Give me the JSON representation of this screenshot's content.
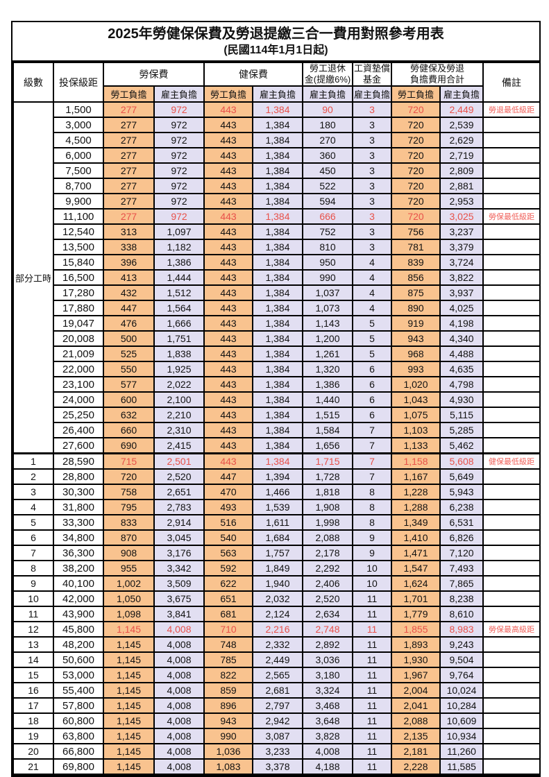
{
  "title": "2025年勞健保保費及勞退提繳三合一費用對照參考用表",
  "subtitle": "(民國114年1月1日起)",
  "columns": {
    "level": "級數",
    "salary": "投保級距",
    "labor": "勞保費",
    "health": "健保費",
    "pension": "勞工退休\n金(提繳6%)",
    "wage_fund": "工資墊償\n基金",
    "total": "勞健保及勞退\n負擔費用合計",
    "remark": "備註",
    "employee": "勞工負擔",
    "employer": "雇主負擔"
  },
  "part_time_label": "部分工時",
  "colors": {
    "employee_bg": "#F9C38F",
    "employer_bg": "#E2DFF2",
    "highlight_value_text": "#E8514A",
    "remark_text": "#F0625B",
    "border": "#000000"
  },
  "rows": [
    {
      "level": "",
      "salary": "1,500",
      "v": [
        "277",
        "972",
        "443",
        "1,384",
        "90",
        "3",
        "720",
        "2,449"
      ],
      "remark": "勞退最低級距",
      "hl": true
    },
    {
      "level": "",
      "salary": "3,000",
      "v": [
        "277",
        "972",
        "443",
        "1,384",
        "180",
        "3",
        "720",
        "2,539"
      ],
      "remark": "",
      "hl": false
    },
    {
      "level": "",
      "salary": "4,500",
      "v": [
        "277",
        "972",
        "443",
        "1,384",
        "270",
        "3",
        "720",
        "2,629"
      ],
      "remark": "",
      "hl": false
    },
    {
      "level": "",
      "salary": "6,000",
      "v": [
        "277",
        "972",
        "443",
        "1,384",
        "360",
        "3",
        "720",
        "2,719"
      ],
      "remark": "",
      "hl": false
    },
    {
      "level": "",
      "salary": "7,500",
      "v": [
        "277",
        "972",
        "443",
        "1,384",
        "450",
        "3",
        "720",
        "2,809"
      ],
      "remark": "",
      "hl": false
    },
    {
      "level": "",
      "salary": "8,700",
      "v": [
        "277",
        "972",
        "443",
        "1,384",
        "522",
        "3",
        "720",
        "2,881"
      ],
      "remark": "",
      "hl": false
    },
    {
      "level": "",
      "salary": "9,900",
      "v": [
        "277",
        "972",
        "443",
        "1,384",
        "594",
        "3",
        "720",
        "2,953"
      ],
      "remark": "",
      "hl": false
    },
    {
      "level": "",
      "salary": "11,100",
      "v": [
        "277",
        "972",
        "443",
        "1,384",
        "666",
        "3",
        "720",
        "3,025"
      ],
      "remark": "勞保最低級距",
      "hl": true
    },
    {
      "level": "",
      "salary": "12,540",
      "v": [
        "313",
        "1,097",
        "443",
        "1,384",
        "752",
        "3",
        "756",
        "3,237"
      ],
      "remark": "",
      "hl": false
    },
    {
      "level": "",
      "salary": "13,500",
      "v": [
        "338",
        "1,182",
        "443",
        "1,384",
        "810",
        "3",
        "781",
        "3,379"
      ],
      "remark": "",
      "hl": false
    },
    {
      "level": "",
      "salary": "15,840",
      "v": [
        "396",
        "1,386",
        "443",
        "1,384",
        "950",
        "4",
        "839",
        "3,724"
      ],
      "remark": "",
      "hl": false
    },
    {
      "level": "",
      "salary": "16,500",
      "v": [
        "413",
        "1,444",
        "443",
        "1,384",
        "990",
        "4",
        "856",
        "3,822"
      ],
      "remark": "",
      "hl": false
    },
    {
      "level": "",
      "salary": "17,280",
      "v": [
        "432",
        "1,512",
        "443",
        "1,384",
        "1,037",
        "4",
        "875",
        "3,937"
      ],
      "remark": "",
      "hl": false
    },
    {
      "level": "",
      "salary": "17,880",
      "v": [
        "447",
        "1,564",
        "443",
        "1,384",
        "1,073",
        "4",
        "890",
        "4,025"
      ],
      "remark": "",
      "hl": false
    },
    {
      "level": "",
      "salary": "19,047",
      "v": [
        "476",
        "1,666",
        "443",
        "1,384",
        "1,143",
        "5",
        "919",
        "4,198"
      ],
      "remark": "",
      "hl": false
    },
    {
      "level": "",
      "salary": "20,008",
      "v": [
        "500",
        "1,751",
        "443",
        "1,384",
        "1,200",
        "5",
        "943",
        "4,340"
      ],
      "remark": "",
      "hl": false
    },
    {
      "level": "",
      "salary": "21,009",
      "v": [
        "525",
        "1,838",
        "443",
        "1,384",
        "1,261",
        "5",
        "968",
        "4,488"
      ],
      "remark": "",
      "hl": false
    },
    {
      "level": "",
      "salary": "22,000",
      "v": [
        "550",
        "1,925",
        "443",
        "1,384",
        "1,320",
        "6",
        "993",
        "4,635"
      ],
      "remark": "",
      "hl": false
    },
    {
      "level": "",
      "salary": "23,100",
      "v": [
        "577",
        "2,022",
        "443",
        "1,384",
        "1,386",
        "6",
        "1,020",
        "4,798"
      ],
      "remark": "",
      "hl": false
    },
    {
      "level": "",
      "salary": "24,000",
      "v": [
        "600",
        "2,100",
        "443",
        "1,384",
        "1,440",
        "6",
        "1,043",
        "4,930"
      ],
      "remark": "",
      "hl": false
    },
    {
      "level": "",
      "salary": "25,250",
      "v": [
        "632",
        "2,210",
        "443",
        "1,384",
        "1,515",
        "6",
        "1,075",
        "5,115"
      ],
      "remark": "",
      "hl": false
    },
    {
      "level": "",
      "salary": "26,400",
      "v": [
        "660",
        "2,310",
        "443",
        "1,384",
        "1,584",
        "7",
        "1,103",
        "5,285"
      ],
      "remark": "",
      "hl": false
    },
    {
      "level": "",
      "salary": "27,600",
      "v": [
        "690",
        "2,415",
        "443",
        "1,384",
        "1,656",
        "7",
        "1,133",
        "5,462"
      ],
      "remark": "",
      "hl": false
    },
    {
      "level": "1",
      "salary": "28,590",
      "v": [
        "715",
        "2,501",
        "443",
        "1,384",
        "1,715",
        "7",
        "1,158",
        "5,608"
      ],
      "remark": "健保最低級距",
      "hl": true
    },
    {
      "level": "2",
      "salary": "28,800",
      "v": [
        "720",
        "2,520",
        "447",
        "1,394",
        "1,728",
        "7",
        "1,167",
        "5,649"
      ],
      "remark": "",
      "hl": false
    },
    {
      "level": "3",
      "salary": "30,300",
      "v": [
        "758",
        "2,651",
        "470",
        "1,466",
        "1,818",
        "8",
        "1,228",
        "5,943"
      ],
      "remark": "",
      "hl": false
    },
    {
      "level": "4",
      "salary": "31,800",
      "v": [
        "795",
        "2,783",
        "493",
        "1,539",
        "1,908",
        "8",
        "1,288",
        "6,238"
      ],
      "remark": "",
      "hl": false
    },
    {
      "level": "5",
      "salary": "33,300",
      "v": [
        "833",
        "2,914",
        "516",
        "1,611",
        "1,998",
        "8",
        "1,349",
        "6,531"
      ],
      "remark": "",
      "hl": false
    },
    {
      "level": "6",
      "salary": "34,800",
      "v": [
        "870",
        "3,045",
        "540",
        "1,684",
        "2,088",
        "9",
        "1,410",
        "6,826"
      ],
      "remark": "",
      "hl": false
    },
    {
      "level": "7",
      "salary": "36,300",
      "v": [
        "908",
        "3,176",
        "563",
        "1,757",
        "2,178",
        "9",
        "1,471",
        "7,120"
      ],
      "remark": "",
      "hl": false
    },
    {
      "level": "8",
      "salary": "38,200",
      "v": [
        "955",
        "3,342",
        "592",
        "1,849",
        "2,292",
        "10",
        "1,547",
        "7,493"
      ],
      "remark": "",
      "hl": false
    },
    {
      "level": "9",
      "salary": "40,100",
      "v": [
        "1,002",
        "3,509",
        "622",
        "1,940",
        "2,406",
        "10",
        "1,624",
        "7,865"
      ],
      "remark": "",
      "hl": false
    },
    {
      "level": "10",
      "salary": "42,000",
      "v": [
        "1,050",
        "3,675",
        "651",
        "2,032",
        "2,520",
        "11",
        "1,701",
        "8,238"
      ],
      "remark": "",
      "hl": false
    },
    {
      "level": "11",
      "salary": "43,900",
      "v": [
        "1,098",
        "3,841",
        "681",
        "2,124",
        "2,634",
        "11",
        "1,779",
        "8,610"
      ],
      "remark": "",
      "hl": false
    },
    {
      "level": "12",
      "salary": "45,800",
      "v": [
        "1,145",
        "4,008",
        "710",
        "2,216",
        "2,748",
        "11",
        "1,855",
        "8,983"
      ],
      "remark": "勞保最高級距",
      "hl": true
    },
    {
      "level": "13",
      "salary": "48,200",
      "v": [
        "1,145",
        "4,008",
        "748",
        "2,332",
        "2,892",
        "11",
        "1,893",
        "9,243"
      ],
      "remark": "",
      "hl": false
    },
    {
      "level": "14",
      "salary": "50,600",
      "v": [
        "1,145",
        "4,008",
        "785",
        "2,449",
        "3,036",
        "11",
        "1,930",
        "9,504"
      ],
      "remark": "",
      "hl": false
    },
    {
      "level": "15",
      "salary": "53,000",
      "v": [
        "1,145",
        "4,008",
        "822",
        "2,565",
        "3,180",
        "11",
        "1,967",
        "9,764"
      ],
      "remark": "",
      "hl": false
    },
    {
      "level": "16",
      "salary": "55,400",
      "v": [
        "1,145",
        "4,008",
        "859",
        "2,681",
        "3,324",
        "11",
        "2,004",
        "10,024"
      ],
      "remark": "",
      "hl": false
    },
    {
      "level": "17",
      "salary": "57,800",
      "v": [
        "1,145",
        "4,008",
        "896",
        "2,797",
        "3,468",
        "11",
        "2,041",
        "10,284"
      ],
      "remark": "",
      "hl": false
    },
    {
      "level": "18",
      "salary": "60,800",
      "v": [
        "1,145",
        "4,008",
        "943",
        "2,942",
        "3,648",
        "11",
        "2,088",
        "10,609"
      ],
      "remark": "",
      "hl": false
    },
    {
      "level": "19",
      "salary": "63,800",
      "v": [
        "1,145",
        "4,008",
        "990",
        "3,087",
        "3,828",
        "11",
        "2,135",
        "10,934"
      ],
      "remark": "",
      "hl": false
    },
    {
      "level": "20",
      "salary": "66,800",
      "v": [
        "1,145",
        "4,008",
        "1,036",
        "3,233",
        "4,008",
        "11",
        "2,181",
        "11,260"
      ],
      "remark": "",
      "hl": false
    },
    {
      "level": "21",
      "salary": "69,800",
      "v": [
        "1,145",
        "4,008",
        "1,083",
        "3,378",
        "4,188",
        "11",
        "2,228",
        "11,585"
      ],
      "remark": "",
      "hl": false
    }
  ]
}
